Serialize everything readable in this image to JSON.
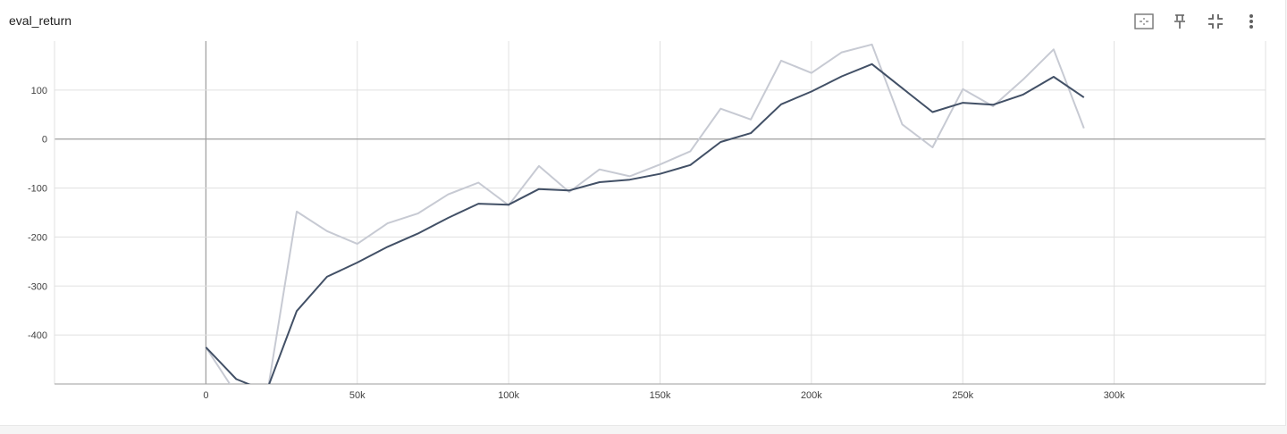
{
  "card": {
    "title": "eval_return"
  },
  "toolbar": {
    "icons": [
      "fit-domain-icon",
      "pin-icon",
      "collapse-icon",
      "more-vert-icon"
    ]
  },
  "colors": {
    "smoothed": "#425066",
    "raw": "#c7cad3",
    "grid": "#e0e0e0",
    "axis": "#9e9e9e"
  },
  "chart_data": {
    "type": "line",
    "title": "eval_return",
    "xlim": [
      -50000,
      350000
    ],
    "ylim": [
      -500,
      200
    ],
    "x_ticks": [
      0,
      50000,
      100000,
      150000,
      200000,
      250000,
      300000
    ],
    "x_tick_labels": [
      "0",
      "50k",
      "100k",
      "150k",
      "200k",
      "250k",
      "300k"
    ],
    "y_ticks": [
      -400,
      -300,
      -200,
      -100,
      0,
      100
    ],
    "y_tick_labels": [
      "-400",
      "-300",
      "-200",
      "-100",
      "0",
      "100"
    ],
    "grid": true,
    "series": [
      {
        "role": "raw",
        "x": [
          0,
          10000,
          20000,
          30000,
          40000,
          50000,
          60000,
          70000,
          80000,
          90000,
          100000,
          110000,
          120000,
          130000,
          140000,
          150000,
          160000,
          170000,
          180000,
          190000,
          200000,
          210000,
          220000,
          230000,
          240000,
          250000,
          260000,
          270000,
          280000,
          290000
        ],
        "values": [
          -425,
          -520,
          -530,
          -148,
          -188,
          -214,
          -172,
          -152,
          -113,
          -89,
          -135,
          -55,
          -108,
          -62,
          -76,
          -52,
          -25,
          62,
          40,
          160,
          135,
          177,
          193,
          30,
          -17,
          102,
          67,
          122,
          183,
          22
        ]
      },
      {
        "role": "smoothed",
        "x": [
          0,
          10000,
          20000,
          30000,
          40000,
          50000,
          60000,
          70000,
          80000,
          90000,
          100000,
          110000,
          120000,
          130000,
          140000,
          150000,
          160000,
          170000,
          180000,
          190000,
          200000,
          210000,
          220000,
          230000,
          240000,
          250000,
          260000,
          270000,
          280000,
          290000
        ],
        "values": [
          -425,
          -490,
          -515,
          -351,
          -281,
          -252,
          -220,
          -193,
          -161,
          -132,
          -134,
          -102,
          -105,
          -88,
          -83,
          -71,
          -53,
          -6,
          12,
          71,
          97,
          128,
          153,
          104,
          55,
          74,
          70,
          91,
          127,
          85
        ]
      }
    ]
  }
}
